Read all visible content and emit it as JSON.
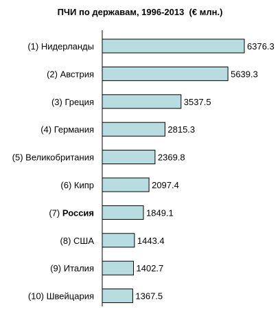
{
  "chart_data": {
    "type": "bar",
    "orientation": "horizontal",
    "title": "ПЧИ по державам, 1996-2013  (€ млн.)",
    "categories": [
      "(1) Нидерланды",
      "(2) Австрия",
      "(3) Греция",
      "(4) Германия",
      "(5) Великобритания",
      "(6) Кипр",
      "(7) Россия",
      "(8) США",
      "(9) Италия",
      "(10) Швейцария"
    ],
    "category_parts": [
      {
        "prefix": "(1) ",
        "name": "Нидерланды"
      },
      {
        "prefix": "(2) ",
        "name": "Австрия"
      },
      {
        "prefix": "(3) ",
        "name": "Греция"
      },
      {
        "prefix": "(4) ",
        "name": "Германия"
      },
      {
        "prefix": "(5) ",
        "name": "Великобритания"
      },
      {
        "prefix": "(6) ",
        "name": "Кипр"
      },
      {
        "prefix": "(7) ",
        "name": "Россия",
        "bold": true
      },
      {
        "prefix": "(8) ",
        "name": "США"
      },
      {
        "prefix": "(9) ",
        "name": "Италия"
      },
      {
        "prefix": "(10) ",
        "name": "Швейцария"
      }
    ],
    "values": [
      6376.3,
      5639.3,
      3537.5,
      2815.3,
      2369.8,
      2097.4,
      1849.1,
      1443.4,
      1402.7,
      1367.5
    ],
    "value_labels": [
      "6376.3",
      "5639.3",
      "3537.5",
      "2815.3",
      "2369.8",
      "2097.4",
      "1849.1",
      "1443.4",
      "1402.7",
      "1367.5"
    ],
    "xlim": [
      0,
      6376.3
    ],
    "grid": false,
    "legend": "none",
    "colors": {
      "bar_fill": "#b7dde0",
      "bar_stroke": "#000000",
      "axis": "#000000",
      "text": "#000000"
    }
  }
}
